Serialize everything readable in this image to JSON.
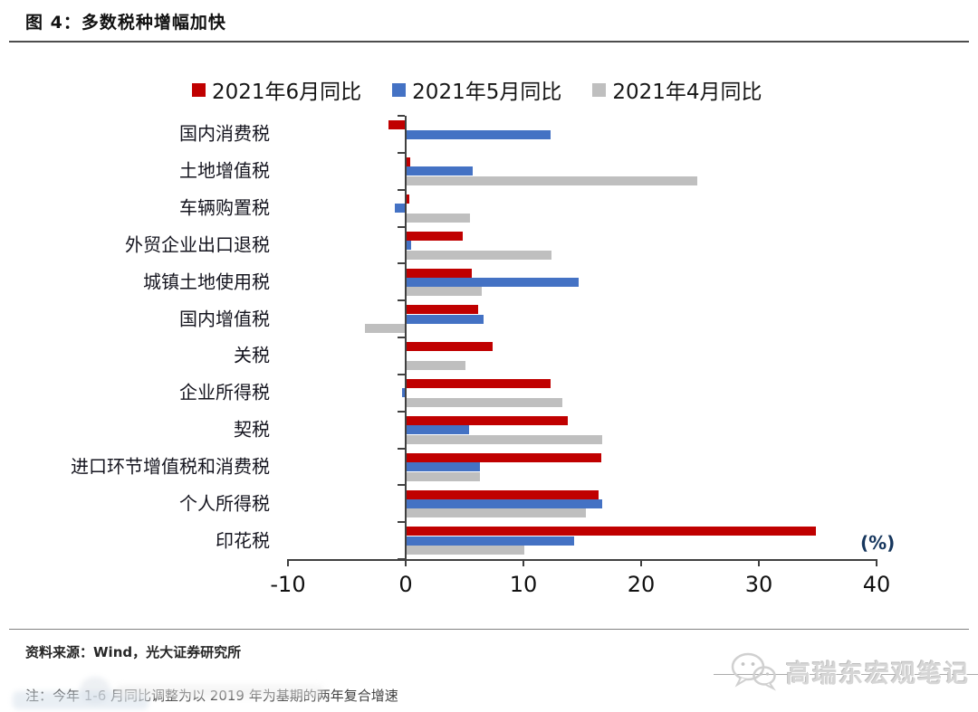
{
  "page": {
    "title": "图 4：多数税种增幅加快",
    "percent_label": "(%)",
    "footer": {
      "source": "资料来源：Wind，光大证券研究所",
      "note": "注：今年 1-6 月同比调整为以 2019 年为基期的两年复合增速"
    },
    "watermark": {
      "text": "高瑞东宏观笔记",
      "icon": "wechat-icon"
    }
  },
  "chart_data": {
    "type": "bar",
    "orientation": "horizontal",
    "title": "图 4：多数税种增幅加快",
    "unit": "%",
    "categories": [
      "国内消费税",
      "土地增值税",
      "车辆购置税",
      "外贸企业出口退税",
      "城镇土地使用税",
      "国内增值税",
      "关税",
      "企业所得税",
      "契税",
      "进口环节增值税和消费税",
      "个人所得税",
      "印花税"
    ],
    "series": [
      {
        "name": "2021年6月同比",
        "color": "#C00000",
        "values": [
          -1.5,
          0.3,
          0.2,
          4.8,
          5.5,
          6.1,
          7.3,
          12.2,
          13.7,
          16.5,
          16.3,
          34.8
        ]
      },
      {
        "name": "2021年5月同比",
        "color": "#4472C4",
        "values": [
          12.2,
          5.6,
          -0.9,
          0.4,
          14.6,
          6.5,
          0,
          -0.3,
          5.3,
          6.2,
          16.6,
          14.2
        ]
      },
      {
        "name": "2021年4月同比",
        "color": "#BFBFBF",
        "values": [
          0,
          24.7,
          5.4,
          12.3,
          6.4,
          -3.5,
          5.0,
          13.2,
          16.6,
          6.2,
          15.2,
          10.0
        ]
      }
    ],
    "x_axis": {
      "min": -10,
      "max": 40,
      "ticks": [
        -10,
        0,
        10,
        20,
        30,
        40
      ],
      "tick_labels": [
        "-10",
        "0",
        "10",
        "20",
        "30",
        "40"
      ]
    },
    "legend_position": "top",
    "grid": false
  }
}
